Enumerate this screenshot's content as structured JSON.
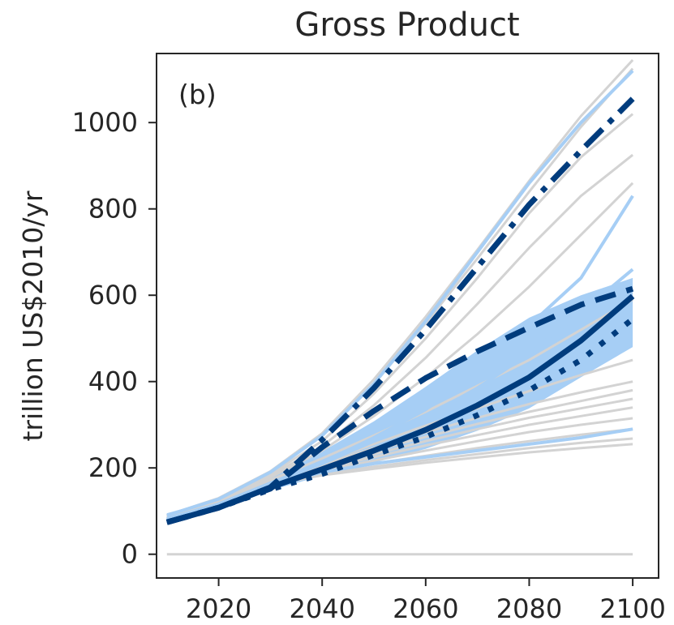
{
  "chart_data": {
    "type": "line",
    "title": "Gross Product",
    "panel_label": "(b)",
    "xlabel": "",
    "ylabel": "trillion US$2010/yr",
    "xlim": [
      2008,
      2105
    ],
    "ylim": [
      -55,
      1160
    ],
    "xticks": [
      2020,
      2040,
      2060,
      2080,
      2100
    ],
    "yticks": [
      0,
      200,
      400,
      600,
      800,
      1000
    ],
    "grid": false,
    "legend": "none",
    "colors": {
      "background_runs": "#d3d3d3",
      "highlight_runs": "#a6cef5",
      "band": "#a6cef5",
      "main": "#003c7d",
      "axis": "#262626"
    },
    "x": [
      2010,
      2020,
      2030,
      2040,
      2050,
      2060,
      2070,
      2080,
      2090,
      2100
    ],
    "background_runs": [
      [
        0,
        0,
        0,
        0,
        0,
        0,
        0,
        0,
        0,
        0
      ],
      [
        78,
        112,
        160,
        183,
        198,
        212,
        224,
        236,
        246,
        255
      ],
      [
        78,
        112,
        160,
        186,
        203,
        218,
        232,
        246,
        258,
        268
      ],
      [
        78,
        112,
        161,
        190,
        210,
        228,
        246,
        262,
        277,
        290
      ],
      [
        80,
        114,
        162,
        194,
        217,
        240,
        262,
        283,
        300,
        315
      ],
      [
        80,
        114,
        163,
        198,
        225,
        252,
        276,
        300,
        320,
        340
      ],
      [
        82,
        116,
        164,
        202,
        232,
        262,
        290,
        316,
        338,
        360
      ],
      [
        82,
        116,
        165,
        205,
        240,
        272,
        302,
        330,
        355,
        380
      ],
      [
        83,
        117,
        166,
        208,
        246,
        282,
        316,
        348,
        375,
        400
      ],
      [
        84,
        118,
        168,
        212,
        255,
        298,
        338,
        378,
        415,
        450
      ],
      [
        85,
        120,
        172,
        222,
        275,
        330,
        390,
        450,
        520,
        590
      ],
      [
        86,
        122,
        178,
        240,
        320,
        410,
        510,
        620,
        740,
        860
      ],
      [
        86,
        124,
        182,
        250,
        345,
        455,
        580,
        710,
        830,
        925
      ],
      [
        88,
        126,
        186,
        262,
        372,
        500,
        640,
        790,
        920,
        1020
      ],
      [
        90,
        128,
        190,
        275,
        395,
        535,
        685,
        840,
        990,
        1125
      ],
      [
        90,
        130,
        192,
        280,
        405,
        550,
        705,
        865,
        1015,
        1145
      ]
    ],
    "highlight_runs": [
      [
        80,
        114,
        160,
        190,
        210,
        225,
        240,
        255,
        270,
        290
      ],
      [
        82,
        116,
        164,
        210,
        262,
        318,
        385,
        465,
        560,
        660
      ],
      [
        82,
        116,
        165,
        212,
        270,
        335,
        420,
        530,
        640,
        830
      ],
      [
        90,
        128,
        190,
        275,
        395,
        540,
        700,
        860,
        1000,
        1120
      ]
    ],
    "band": {
      "upper": [
        95,
        128,
        178,
        238,
        308,
        388,
        472,
        548,
        600,
        640
      ],
      "lower": [
        70,
        104,
        148,
        182,
        212,
        244,
        286,
        338,
        410,
        480
      ]
    },
    "series": [
      {
        "style": "solid",
        "values": [
          74,
          108,
          155,
          197,
          240,
          288,
          345,
          410,
          495,
          598
        ]
      },
      {
        "style": "dashed",
        "values": [
          74,
          108,
          152,
          248,
          332,
          408,
          470,
          525,
          578,
          615
        ]
      },
      {
        "style": "dotted",
        "values": [
          74,
          108,
          150,
          186,
          230,
          272,
          322,
          380,
          450,
          545
        ]
      },
      {
        "style": "dashdot",
        "values": [
          74,
          108,
          155,
          265,
          385,
          520,
          665,
          810,
          935,
          1055
        ]
      }
    ]
  }
}
